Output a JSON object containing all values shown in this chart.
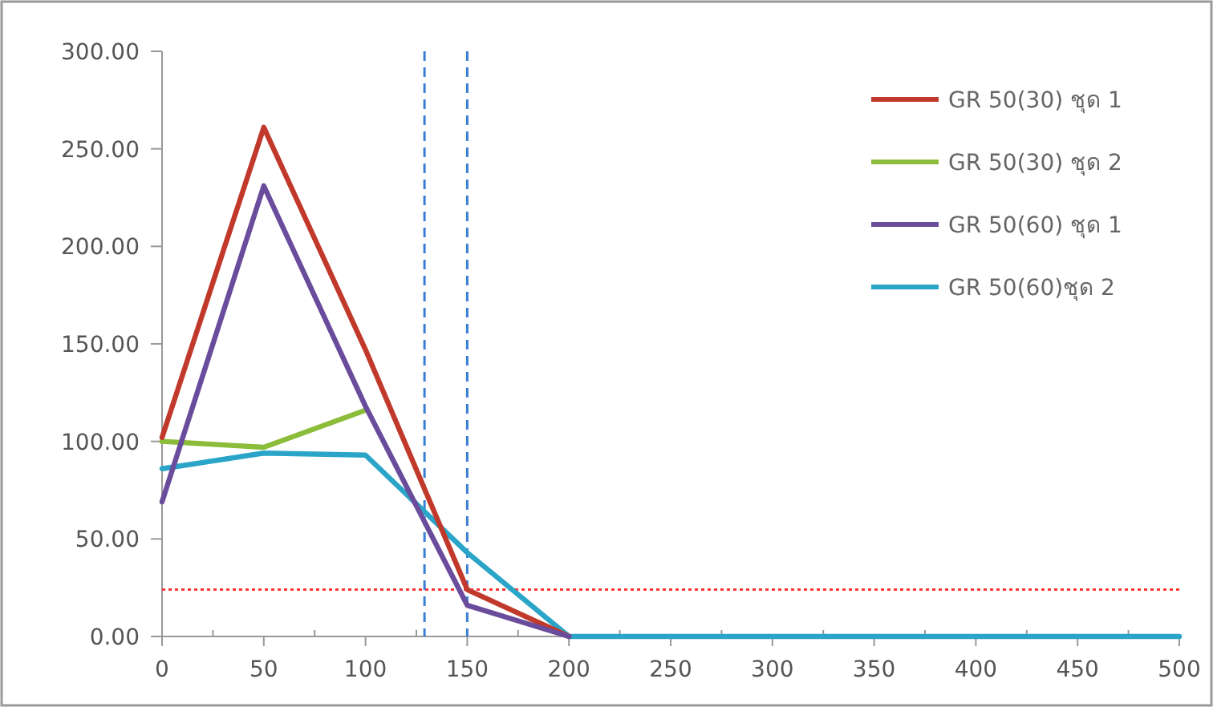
{
  "chart_data": {
    "type": "line",
    "xlim": [
      0,
      500
    ],
    "ylim": [
      0,
      300
    ],
    "xticks": [
      0,
      50,
      100,
      150,
      200,
      250,
      300,
      350,
      400,
      450,
      500
    ],
    "yticks": [
      {
        "value": 0,
        "label": "0.00"
      },
      {
        "value": 50,
        "label": "50.00"
      },
      {
        "value": 100,
        "label": "100.00"
      },
      {
        "value": 150,
        "label": "150.00"
      },
      {
        "value": 200,
        "label": "200.00"
      },
      {
        "value": 250,
        "label": "250.00"
      },
      {
        "value": 300,
        "label": "300.00"
      }
    ],
    "grid": false,
    "legend": "top right",
    "marker": "none",
    "line_style": "solid",
    "series": [
      {
        "name": "GR 50(30) ชุด 1",
        "color": "#c0392b",
        "x": [
          0,
          50,
          100,
          150,
          200
        ],
        "values": [
          102,
          261,
          147,
          24,
          0
        ]
      },
      {
        "name": "GR 50(30) ชุด 2",
        "color": "#8cbd3a",
        "x": [
          0,
          50,
          100
        ],
        "values": [
          100,
          97,
          116
        ]
      },
      {
        "name": "GR 50(60) ชุด 1",
        "color": "#6a4c9c",
        "x": [
          0,
          50,
          100,
          150,
          200
        ],
        "values": [
          69,
          231,
          118,
          16,
          0
        ]
      },
      {
        "name": "GR 50(60)ชุด 2",
        "color": "#2aa5c8",
        "x": [
          0,
          50,
          100,
          150,
          200,
          500
        ],
        "values": [
          86,
          94,
          93,
          43,
          0,
          0
        ]
      }
    ],
    "ref_lines": [
      {
        "axis": "y",
        "value": 24,
        "color": "#ff3333",
        "line_style": "dotted"
      },
      {
        "axis": "x",
        "value": 129,
        "color": "#3a7fd5",
        "line_style": "dashed"
      },
      {
        "axis": "x",
        "value": 150,
        "color": "#3a7fd5",
        "line_style": "dashed"
      }
    ]
  }
}
